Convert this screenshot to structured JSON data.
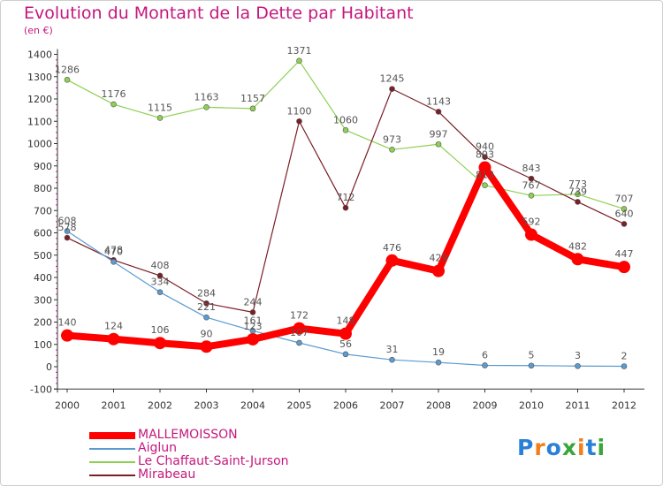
{
  "title": "Evolution du Montant de la Dette par Habitant",
  "subtitle": "(en €)",
  "logo": {
    "text": "Proxiti",
    "letters": [
      "P",
      "r",
      "o",
      "x",
      "i",
      "t",
      "i"
    ],
    "colors": [
      "#2a7fd6",
      "#f07f1d",
      "#2a7fd6",
      "#37a73a",
      "#f07f1d",
      "#2a7fd6",
      "#37a73a"
    ]
  },
  "chart_data": {
    "type": "line",
    "x": [
      "2000",
      "2001",
      "2002",
      "2003",
      "2004",
      "2005",
      "2006",
      "2007",
      "2008",
      "2009",
      "2010",
      "2011",
      "2012"
    ],
    "ylim": [
      -100,
      1400
    ],
    "yticks": [
      "-100",
      "0",
      "100",
      "200",
      "300",
      "400",
      "500",
      "600",
      "700",
      "800",
      "900",
      "1000",
      "1100",
      "1200",
      "1300",
      "1400"
    ],
    "grid": false,
    "legend_position": "bottom-left",
    "series": [
      {
        "name": "MALLEMOISSON",
        "color": "#ff0000",
        "values": [
          140,
          124,
          106,
          90,
          123,
          172,
          148,
          476,
          429,
          893,
          592,
          482,
          447
        ],
        "labels": [
          "140",
          "124",
          "106",
          "90",
          "123",
          "172",
          "148",
          "476",
          "429",
          "893",
          "592",
          "482",
          "447"
        ]
      },
      {
        "name": "Aiglun",
        "color": "#5b9bd0",
        "values": [
          608,
          470,
          334,
          221,
          161,
          107,
          56,
          31,
          19,
          6,
          5,
          3,
          2
        ],
        "labels": [
          "608",
          "470",
          "334",
          "221",
          "161",
          "107",
          "56",
          "31",
          "19",
          "6",
          "5",
          "3",
          "2"
        ]
      },
      {
        "name": "Le Chaffaut-Saint-Jurson",
        "color": "#8ed052",
        "values": [
          1286,
          1176,
          1115,
          1163,
          1157,
          1371,
          1060,
          973,
          997,
          813,
          767,
          773,
          707
        ],
        "labels": [
          "1286",
          "1176",
          "1115",
          "1163",
          "1157",
          "1371",
          "1060",
          "973",
          "997",
          "813",
          "767",
          "773",
          "707"
        ]
      },
      {
        "name": "Mirabeau",
        "color": "#7a1f26",
        "values": [
          578,
          478,
          408,
          284,
          244,
          1100,
          712,
          1245,
          1143,
          940,
          843,
          739,
          640
        ],
        "labels": [
          "578",
          "478",
          "408",
          "284",
          "244",
          "1100",
          "712",
          "1245",
          "1143",
          "940",
          "843",
          "739",
          "640"
        ]
      }
    ]
  }
}
